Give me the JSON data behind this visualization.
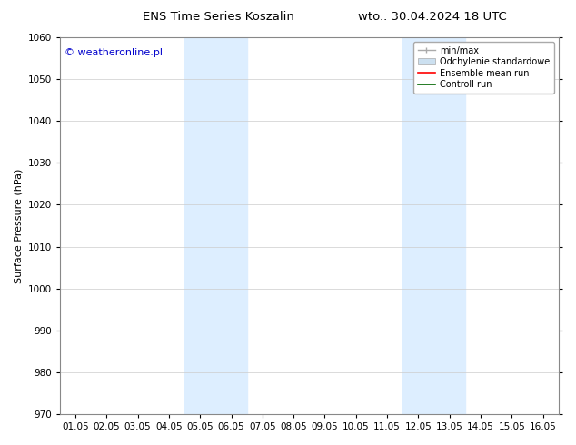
{
  "title_left": "ENS Time Series Koszalin",
  "title_right": "wto.. 30.04.2024 18 UTC",
  "ylabel": "Surface Pressure (hPa)",
  "ylim": [
    970,
    1060
  ],
  "yticks": [
    970,
    980,
    990,
    1000,
    1010,
    1020,
    1030,
    1040,
    1050,
    1060
  ],
  "xtick_labels": [
    "01.05",
    "02.05",
    "03.05",
    "04.05",
    "05.05",
    "06.05",
    "07.05",
    "08.05",
    "09.05",
    "10.05",
    "11.05",
    "12.05",
    "13.05",
    "14.05",
    "15.05",
    "16.05"
  ],
  "watermark": "© weatheronline.pl",
  "watermark_color": "#0000cc",
  "bg_color": "#ffffff",
  "plot_bg_color": "#ffffff",
  "shaded_bands": [
    {
      "xmin": 3.5,
      "xmax": 5.5
    },
    {
      "xmin": 10.5,
      "xmax": 12.5
    }
  ],
  "shade_color": "#ddeeff",
  "title_fontsize": 9.5,
  "axis_label_fontsize": 8,
  "tick_fontsize": 7.5,
  "watermark_fontsize": 8,
  "legend_fontsize": 7,
  "minmax_color": "#aaaaaa",
  "std_facecolor": "#cce0f0",
  "std_edgecolor": "#aaaaaa",
  "ensemble_color": "#ff0000",
  "control_color": "#006600"
}
